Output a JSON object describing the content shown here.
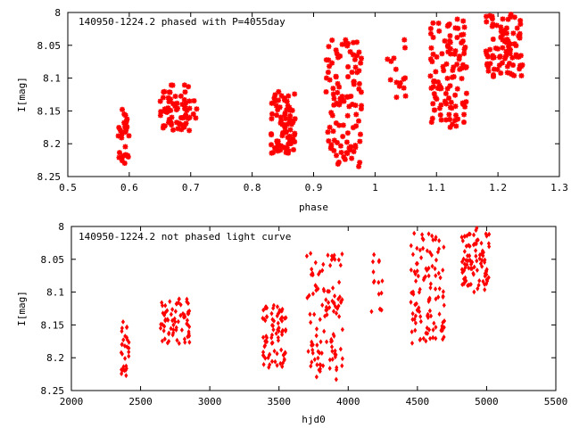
{
  "chart_data": [
    {
      "type": "scatter",
      "title": "140950-1224.2 phased with P=4055day",
      "xlabel": "phase",
      "ylabel": "I[mag]",
      "xlim": [
        0.5,
        1.3
      ],
      "ylim": [
        8.25,
        8.0
      ],
      "y_reversed": true,
      "xticks": [
        "0.5",
        "0.6",
        "0.7",
        "0.8",
        "0.9",
        "1",
        "1.1",
        "1.2",
        "1.3"
      ],
      "yticks": [
        "8",
        "8.05",
        "8.1",
        "8.15",
        "8.2",
        "8.25"
      ],
      "marker": "star",
      "color": "#ff0000",
      "clusters": [
        {
          "x_min": 0.58,
          "x_max": 0.6,
          "y_min": 8.145,
          "y_max": 8.23,
          "n": 30
        },
        {
          "x_min": 0.65,
          "x_max": 0.71,
          "y_min": 8.11,
          "y_max": 8.18,
          "n": 70
        },
        {
          "x_min": 0.83,
          "x_max": 0.87,
          "y_min": 8.12,
          "y_max": 8.215,
          "n": 80
        },
        {
          "x_min": 0.92,
          "x_max": 0.98,
          "y_min": 8.04,
          "y_max": 8.235,
          "n": 110
        },
        {
          "x_min": 1.02,
          "x_max": 1.05,
          "y_min": 8.04,
          "y_max": 8.13,
          "n": 15
        },
        {
          "x_min": 1.09,
          "x_max": 1.15,
          "y_min": 8.01,
          "y_max": 8.18,
          "n": 110
        },
        {
          "x_min": 1.18,
          "x_max": 1.24,
          "y_min": 8.0,
          "y_max": 8.1,
          "n": 90
        }
      ]
    },
    {
      "type": "scatter",
      "title": "140950-1224.2 not phased light curve",
      "xlabel": "hjd0",
      "ylabel": "I[mag]",
      "xlim": [
        2000,
        5500
      ],
      "ylim": [
        8.25,
        8.0
      ],
      "y_reversed": true,
      "xticks": [
        "2000",
        "2500",
        "3000",
        "3500",
        "4000",
        "4500",
        "5000",
        "5500"
      ],
      "yticks": [
        "8",
        "8.05",
        "8.1",
        "8.15",
        "8.2",
        "8.25"
      ],
      "marker": "diamond",
      "color": "#ff0000",
      "clusters": [
        {
          "x_min": 2360,
          "x_max": 2420,
          "y_min": 8.145,
          "y_max": 8.23,
          "n": 30
        },
        {
          "x_min": 2640,
          "x_max": 2860,
          "y_min": 8.11,
          "y_max": 8.18,
          "n": 70
        },
        {
          "x_min": 3380,
          "x_max": 3550,
          "y_min": 8.12,
          "y_max": 8.215,
          "n": 80
        },
        {
          "x_min": 3700,
          "x_max": 3960,
          "y_min": 8.04,
          "y_max": 8.235,
          "n": 110
        },
        {
          "x_min": 4150,
          "x_max": 4260,
          "y_min": 8.04,
          "y_max": 8.13,
          "n": 15
        },
        {
          "x_min": 4450,
          "x_max": 4700,
          "y_min": 8.01,
          "y_max": 8.18,
          "n": 110
        },
        {
          "x_min": 4820,
          "x_max": 5020,
          "y_min": 8.0,
          "y_max": 8.1,
          "n": 90
        }
      ]
    }
  ]
}
